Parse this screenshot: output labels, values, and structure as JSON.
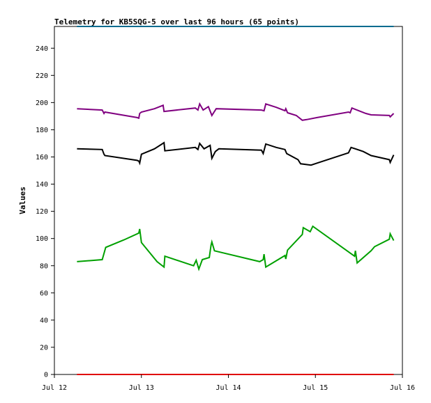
{
  "chart_data": {
    "type": "line",
    "title": "Telemetry for KB5SQG-5 over last 96 hours (65 points)",
    "xlabel": "",
    "ylabel": "Values",
    "xlim": [
      "Jul 12",
      "Jul 16"
    ],
    "ylim": [
      0,
      256
    ],
    "x_ticks": [
      "Jul 12",
      "Jul 13",
      "Jul 14",
      "Jul 15",
      "Jul 16"
    ],
    "y_ticks": [
      0,
      20,
      40,
      60,
      80,
      100,
      120,
      140,
      160,
      180,
      200,
      220,
      240
    ],
    "grid": false,
    "legend": "none",
    "series": [
      {
        "color": "#006b8f",
        "points": [
          [
            0.26,
            256
          ],
          [
            3.9,
            256
          ]
        ]
      },
      {
        "color": "#800080",
        "points": [
          [
            0.26,
            195.5
          ],
          [
            0.55,
            194.5
          ],
          [
            0.57,
            192
          ],
          [
            0.58,
            193
          ],
          [
            0.95,
            189
          ],
          [
            0.97,
            188.5
          ],
          [
            0.98,
            192
          ],
          [
            1.0,
            193
          ],
          [
            1.15,
            195.5
          ],
          [
            1.25,
            198
          ],
          [
            1.26,
            193.5
          ],
          [
            1.62,
            196
          ],
          [
            1.65,
            194.5
          ],
          [
            1.67,
            199
          ],
          [
            1.71,
            194.5
          ],
          [
            1.77,
            197
          ],
          [
            1.81,
            190.5
          ],
          [
            1.86,
            195.5
          ],
          [
            2.38,
            194.5
          ],
          [
            2.41,
            194
          ],
          [
            2.43,
            199
          ],
          [
            2.55,
            196.5
          ],
          [
            2.65,
            194
          ],
          [
            2.66,
            195.5
          ],
          [
            2.68,
            192.5
          ],
          [
            2.78,
            190.5
          ],
          [
            2.85,
            187
          ],
          [
            2.9,
            187.5
          ],
          [
            3.02,
            189
          ],
          [
            3.38,
            193
          ],
          [
            3.4,
            192.5
          ],
          [
            3.42,
            196
          ],
          [
            3.58,
            192
          ],
          [
            3.64,
            191
          ],
          [
            3.85,
            190.5
          ],
          [
            3.86,
            189.5
          ],
          [
            3.9,
            192
          ]
        ]
      },
      {
        "color": "#000000",
        "points": [
          [
            0.26,
            166
          ],
          [
            0.55,
            165.5
          ],
          [
            0.57,
            162
          ],
          [
            0.58,
            161
          ],
          [
            0.95,
            157.5
          ],
          [
            0.97,
            157
          ],
          [
            0.98,
            155.5
          ],
          [
            1.0,
            162
          ],
          [
            1.15,
            166
          ],
          [
            1.26,
            170.5
          ],
          [
            1.27,
            164.5
          ],
          [
            1.62,
            167
          ],
          [
            1.65,
            165.5
          ],
          [
            1.67,
            170
          ],
          [
            1.72,
            166
          ],
          [
            1.79,
            168.5
          ],
          [
            1.81,
            159
          ],
          [
            1.85,
            164
          ],
          [
            1.89,
            166
          ],
          [
            2.38,
            165
          ],
          [
            2.4,
            162.5
          ],
          [
            2.43,
            169.5
          ],
          [
            2.55,
            167
          ],
          [
            2.65,
            165.5
          ],
          [
            2.67,
            162.5
          ],
          [
            2.8,
            158
          ],
          [
            2.83,
            155
          ],
          [
            2.95,
            154
          ],
          [
            3.02,
            155.5
          ],
          [
            3.38,
            163
          ],
          [
            3.41,
            167
          ],
          [
            3.55,
            164
          ],
          [
            3.64,
            161
          ],
          [
            3.85,
            158
          ],
          [
            3.86,
            156
          ],
          [
            3.9,
            161.5
          ]
        ]
      },
      {
        "color": "#00a000",
        "points": [
          [
            0.26,
            83
          ],
          [
            0.55,
            84.5
          ],
          [
            0.59,
            93.5
          ],
          [
            0.8,
            99
          ],
          [
            0.97,
            104
          ],
          [
            0.98,
            107
          ],
          [
            1.0,
            97
          ],
          [
            1.18,
            83
          ],
          [
            1.26,
            79
          ],
          [
            1.27,
            87
          ],
          [
            1.6,
            80
          ],
          [
            1.63,
            84
          ],
          [
            1.66,
            77.5
          ],
          [
            1.7,
            84.5
          ],
          [
            1.78,
            86
          ],
          [
            1.8,
            95
          ],
          [
            1.81,
            97.5
          ],
          [
            1.84,
            91
          ],
          [
            2.36,
            83
          ],
          [
            2.4,
            84.5
          ],
          [
            2.41,
            88.5
          ],
          [
            2.43,
            79
          ],
          [
            2.65,
            87.5
          ],
          [
            2.66,
            85
          ],
          [
            2.68,
            91.5
          ],
          [
            2.85,
            103
          ],
          [
            2.86,
            108
          ],
          [
            2.94,
            105
          ],
          [
            2.97,
            109
          ],
          [
            3.45,
            87
          ],
          [
            3.46,
            91
          ],
          [
            3.48,
            82
          ],
          [
            3.64,
            91
          ],
          [
            3.68,
            94
          ],
          [
            3.85,
            99.5
          ],
          [
            3.86,
            103.5
          ],
          [
            3.9,
            98.5
          ]
        ]
      },
      {
        "color": "#e00000",
        "points": [
          [
            0.26,
            0
          ],
          [
            3.9,
            0
          ]
        ]
      }
    ]
  }
}
